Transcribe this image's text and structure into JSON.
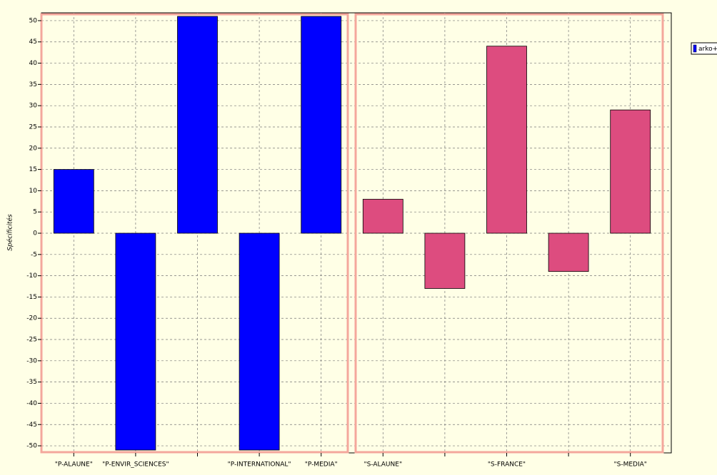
{
  "chart_data": {
    "type": "bar",
    "y_label": "Spécificités",
    "categories": [
      "\"P-ALAUNE\"",
      "\"P-ENVIR_SCIENCES\"",
      null,
      "\"P-INTERNATIONAL\"",
      "\"P-MEDIA\"",
      "\"S-ALAUNE\"",
      null,
      "\"S-FRANCE\"",
      null,
      "\"S-MEDIA\""
    ],
    "values": [
      15,
      -51,
      51,
      -51,
      51,
      8,
      -13,
      44,
      -9,
      29
    ],
    "colors": [
      "#0000ff",
      "#0000ff",
      "#0000ff",
      "#0000ff",
      "#0000ff",
      "#dd4c7f",
      "#dd4c7f",
      "#dd4c7f",
      "#dd4c7f",
      "#dd4c7f"
    ],
    "legend": "arko+",
    "ylim": [
      -51.5,
      51.5
    ],
    "yticks": [
      -50,
      -45,
      -40,
      -35,
      -30,
      -25,
      -20,
      -15,
      -10,
      -5,
      0,
      5,
      10,
      15,
      20,
      25,
      30,
      35,
      40,
      45,
      50
    ],
    "grid": true
  }
}
